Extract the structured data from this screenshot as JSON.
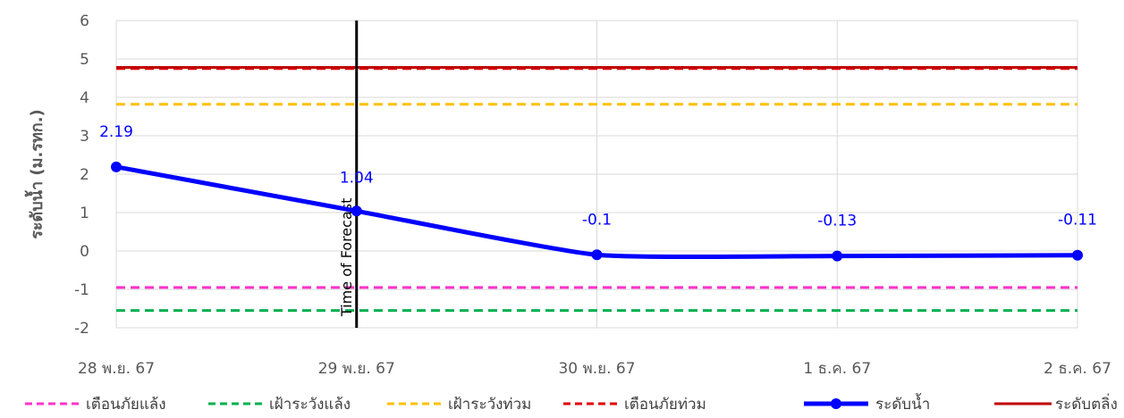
{
  "chart_data": {
    "type": "line",
    "ylabel": "ระดับน้ำ (ม.รทก.)",
    "categories": [
      "28 พ.ย. 67",
      "29 พ.ย. 67",
      "30 พ.ย. 67",
      "1 ธ.ค. 67",
      "2 ธ.ค. 67"
    ],
    "ylim": [
      -2,
      6
    ],
    "yticks": [
      6,
      5,
      4,
      3,
      2,
      1,
      0,
      -1,
      -2
    ],
    "grid": true,
    "legend_position": "bottom",
    "forecast_marker": {
      "label": "Time of Forecast",
      "category_index": 1
    },
    "series": [
      {
        "name": "ระดับน้ำ",
        "values": [
          2.19,
          1.04,
          -0.1,
          -0.13,
          -0.11
        ],
        "labels": [
          "2.19",
          "1.04",
          "-0.1",
          "-0.13",
          "-0.11"
        ],
        "color": "#0000ff"
      }
    ],
    "reference_lines": [
      {
        "name": "เตือนภัยแล้ง",
        "value": -0.95,
        "color": "#ff33cc",
        "style": "dashed"
      },
      {
        "name": "เฝ้าระวังแล้ง",
        "value": -1.55,
        "color": "#00b050",
        "style": "dashed"
      },
      {
        "name": "เฝ้าระวังท่วม",
        "value": 3.82,
        "color": "#ffc000",
        "style": "dashed"
      },
      {
        "name": "เตือนภัยท่วม",
        "value": 4.75,
        "color": "#e00000",
        "style": "dashed"
      },
      {
        "name": "ระดับตลิ่ง",
        "value": 4.78,
        "color": "#c00000",
        "style": "solid"
      }
    ]
  }
}
